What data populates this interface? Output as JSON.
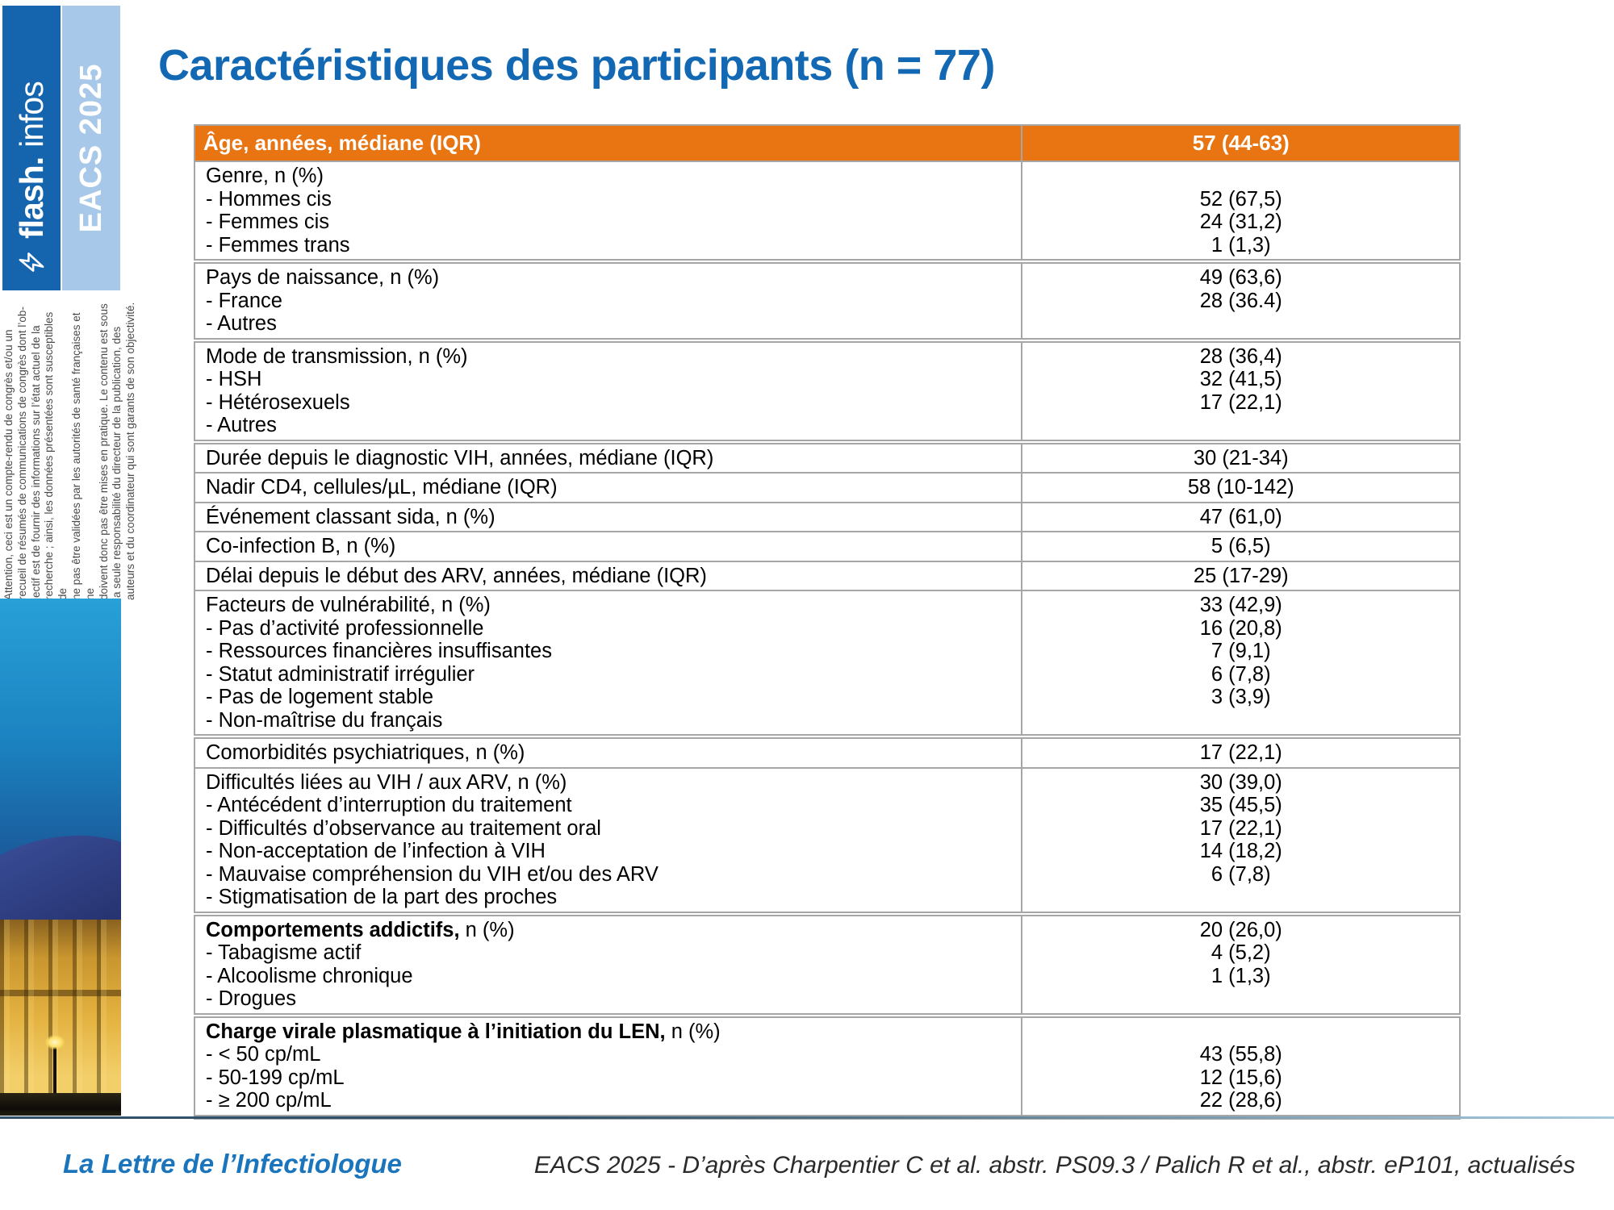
{
  "slide": {
    "title": "Caractéristiques des participants (n = 77)"
  },
  "sidebar": {
    "logo_bold": "flash.",
    "logo_light": "infos",
    "bolt_icon": "lightning-bolt-icon",
    "congress_label": "EACS 2025",
    "disclaimer": "Attention, ceci est un compte-rendu de congrès et/ou un\nrecueil de résumés de communications de congrès dont l’ob-\njectif est de fournir des informations sur l’état actuel de la\nrecherche ; ainsi, les données présentées sont susceptibles de\nne pas être validées par les autorités de santé françaises et ne\ndoivent donc pas être mises en pratique. Le contenu est sous\nla seule responsabilité du directeur de la publication, des\nauteurs et du coordinateur qui sont garants de son objectivité."
  },
  "table": {
    "header": {
      "label": "Âge, années, médiane (IQR)",
      "value": "57 (44-63)"
    },
    "rows": [
      {
        "lines": [
          {
            "l": "Genre, n (%)",
            "v": ""
          },
          {
            "l": "- Hommes cis",
            "v": "52 (67,5)"
          },
          {
            "l": "- Femmes cis",
            "v": "24 (31,2)"
          },
          {
            "l": "- Femmes trans",
            "v": "1 (1,3)"
          }
        ]
      },
      {
        "lines": [
          {
            "l": "Pays de naissance, n (%)",
            "v": "49 (63,6)"
          },
          {
            "l": "- France",
            "v": "28 (36.4)"
          },
          {
            "l": "- Autres",
            "v": ""
          }
        ]
      },
      {
        "lines": [
          {
            "l": "Mode de transmission, n (%)",
            "v": "28 (36,4)"
          },
          {
            "l": "- HSH",
            "v": "32 (41,5)"
          },
          {
            "l": "- Hétérosexuels",
            "v": "17 (22,1)"
          },
          {
            "l": "- Autres",
            "v": ""
          }
        ]
      },
      {
        "lines": [
          {
            "l": "Durée depuis le diagnostic VIH, années, médiane (IQR)",
            "v": "30 (21-34)"
          }
        ]
      },
      {
        "lines": [
          {
            "l": "Nadir CD4, cellules/µL, médiane (IQR)",
            "v": "58 (10-142)"
          }
        ]
      },
      {
        "lines": [
          {
            "l": "Événement classant sida, n (%)",
            "v": "47 (61,0)"
          }
        ]
      },
      {
        "lines": [
          {
            "l": "Co-infection B, n (%)",
            "v": "5 (6,5)"
          }
        ]
      },
      {
        "lines": [
          {
            "l": "Délai depuis le début des ARV, années, médiane (IQR)",
            "v": "25 (17-29)"
          }
        ]
      },
      {
        "lines": [
          {
            "l": "Facteurs de vulnérabilité, n (%)",
            "v": "33 (42,9)"
          },
          {
            "l": "- Pas d’activité professionnelle",
            "v": "16 (20,8)"
          },
          {
            "l": "- Ressources financières insuffisantes",
            "v": "7 (9,1)"
          },
          {
            "l": "- Statut administratif irrégulier",
            "v": "6 (7,8)"
          },
          {
            "l": "- Pas de logement stable",
            "v": "3 (3,9)"
          },
          {
            "l": "- Non-maîtrise du français",
            "v": ""
          }
        ]
      },
      {
        "lines": [
          {
            "l": "Comorbidités psychiatriques, n (%)",
            "v": "17 (22,1)"
          }
        ]
      },
      {
        "lines": [
          {
            "l": "Difficultés liées au VIH / aux ARV, n (%)",
            "v": "30 (39,0)"
          },
          {
            "l": "- Antécédent d’interruption du traitement",
            "v": "35 (45,5)"
          },
          {
            "l": "- Difficultés d’observance au traitement oral",
            "v": "17 (22,1)"
          },
          {
            "l": "- Non-acceptation de l’infection à VIH",
            "v": "14 (18,2)"
          },
          {
            "l": "- Mauvaise compréhension du VIH et/ou des ARV",
            "v": "6 (7,8)"
          },
          {
            "l": "- Stigmatisation de la part des proches",
            "v": ""
          }
        ]
      },
      {
        "lines": [
          {
            "lb": "Comportements addictifs,",
            "l": " n (%)",
            "v": "20 (26,0)"
          },
          {
            "l": "- Tabagisme actif",
            "v": "4 (5,2)"
          },
          {
            "l": "- Alcoolisme chronique",
            "v": "1 (1,3)"
          },
          {
            "l": "- Drogues",
            "v": ""
          }
        ]
      },
      {
        "lines": [
          {
            "lb": "Charge virale plasmatique à l’initiation du LEN,",
            "l": " n (%)",
            "v": ""
          },
          {
            "l": "- < 50 cp/mL",
            "v": "43 (55,8)"
          },
          {
            "l": "- 50-199 cp/mL",
            "v": "12 (15,6)"
          },
          {
            "l": "- ≥ 200 cp/mL",
            "v": "22 (28,6)"
          }
        ]
      }
    ]
  },
  "footer": {
    "brand": "La Lettre de l’Infectiologue",
    "reference": "EACS 2025 - D’après Charpentier C et al. abstr. PS09.3 / Palich R et al., abstr. eP101, actualisés"
  },
  "colors": {
    "accent_orange": "#e87511",
    "title_blue": "#1268b3",
    "sidebar_dark_blue": "#1565ae",
    "sidebar_light_blue": "#a7c8e8",
    "footer_brand_blue": "#1b75bc",
    "table_border_gray": "#a6a6a6"
  }
}
